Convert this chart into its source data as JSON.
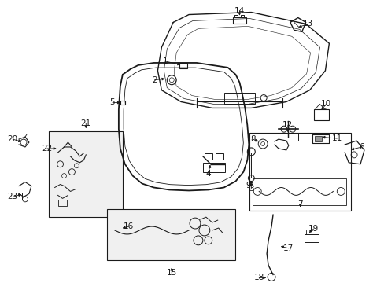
{
  "background_color": "#ffffff",
  "line_color": "#1a1a1a",
  "text_color": "#1a1a1a",
  "label_fontsize": 7.5,
  "figsize": [
    4.89,
    3.6
  ],
  "dpi": 100
}
